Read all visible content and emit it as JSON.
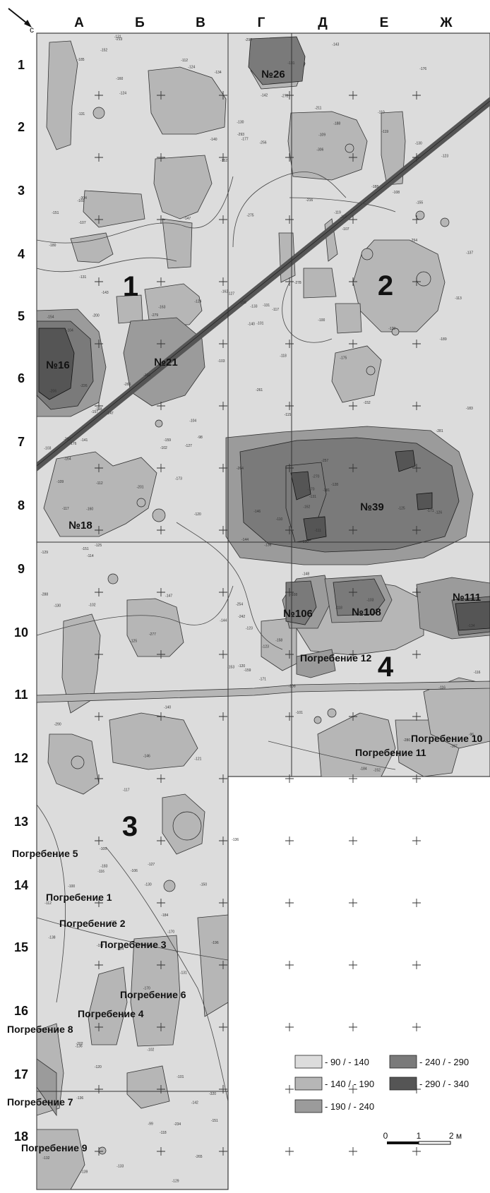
{
  "north_marker": "с",
  "columns": [
    "А",
    "Б",
    "В",
    "Г",
    "Д",
    "Е",
    "Ж"
  ],
  "rows": [
    "1",
    "2",
    "3",
    "4",
    "5",
    "6",
    "7",
    "8",
    "9",
    "10",
    "11",
    "12",
    "13",
    "14",
    "15",
    "16",
    "17",
    "18"
  ],
  "features": [
    {
      "id": "no26",
      "label": "№26"
    },
    {
      "id": "no16",
      "label": "№16"
    },
    {
      "id": "no21",
      "label": "№21"
    },
    {
      "id": "no18",
      "label": "№18"
    },
    {
      "id": "no39",
      "label": "№39"
    },
    {
      "id": "no106",
      "label": "№106"
    },
    {
      "id": "no108",
      "label": "№108"
    },
    {
      "id": "no111",
      "label": "№111"
    }
  ],
  "zones": [
    "1",
    "2",
    "3",
    "4"
  ],
  "burials": [
    "Погребение 12",
    "Погребение 10",
    "Погребение 11",
    "Погребение 5",
    "Погребение 1",
    "Погребение 2",
    "Погребение 3",
    "Погребение 6",
    "Погребение 4",
    "Погребение 8",
    "Погребение 7",
    "Погребение 9"
  ],
  "depth_marks": [
    "171",
    "200",
    "242",
    "202",
    "162",
    "170",
    "188",
    "131",
    "113",
    "108",
    "124",
    "125",
    "137",
    "153",
    "175",
    "133",
    "158",
    "115",
    "127",
    "98",
    "136",
    "102",
    "133",
    "131",
    "143",
    "177",
    "117",
    "183",
    "254",
    "144",
    "163",
    "188",
    "184",
    "152",
    "131",
    "127",
    "201",
    "118",
    "103",
    "130",
    "139",
    "148",
    "197",
    "189",
    "151",
    "170",
    "160",
    "185",
    "155",
    "142",
    "147",
    "176",
    "160",
    "108",
    "131",
    "109",
    "152",
    "146",
    "112",
    "142",
    "184",
    "102",
    "136",
    "131",
    "266",
    "290",
    "264",
    "110",
    "120",
    "118",
    "126",
    "130",
    "116",
    "128",
    "136",
    "164",
    "119",
    "107",
    "125",
    "112",
    "134",
    "109",
    "117",
    "130",
    "101",
    "170",
    "254",
    "120",
    "116",
    "107",
    "101",
    "144",
    "124",
    "100",
    "159",
    "123",
    "162",
    "134",
    "116",
    "176",
    "118",
    "124",
    "103",
    "146",
    "151",
    "125",
    "131",
    "183",
    "159",
    "147",
    "187",
    "140",
    "105",
    "96",
    "104",
    "108",
    "112",
    "158",
    "270",
    "304",
    "320",
    "293",
    "281",
    "279",
    "290",
    "265",
    "280",
    "272",
    "275",
    "261",
    "277",
    "278",
    "256",
    "288",
    "292",
    "306",
    "226",
    "213",
    "206",
    "211",
    "257",
    "234",
    "216",
    "154",
    "118",
    "104",
    "123",
    "141",
    "169",
    "147",
    "157",
    "160",
    "131",
    "123",
    "150",
    "140",
    "129",
    "111",
    "102",
    "127",
    "106",
    "114",
    "110",
    "103",
    "129",
    "152",
    "130",
    "120",
    "138",
    "136",
    "119",
    "113",
    "173",
    "171",
    "196",
    "184",
    "101",
    "121",
    "151",
    "140",
    "117",
    "132",
    "100",
    "99",
    "127",
    "181",
    "130",
    "152",
    "143",
    "180",
    "129"
  ],
  "legend": [
    {
      "range": "- 90 / - 140",
      "color": "#dcdcdc"
    },
    {
      "range": "- 140 / - 190",
      "color": "#b6b6b6"
    },
    {
      "range": "- 190 / - 240",
      "color": "#9b9b9b"
    },
    {
      "range": "- 240 / - 290",
      "color": "#7a7a7a"
    },
    {
      "range": "- 290 / - 340",
      "color": "#555555"
    }
  ],
  "scale_bar": {
    "start": "0",
    "mid": "1",
    "end": "2 м"
  }
}
